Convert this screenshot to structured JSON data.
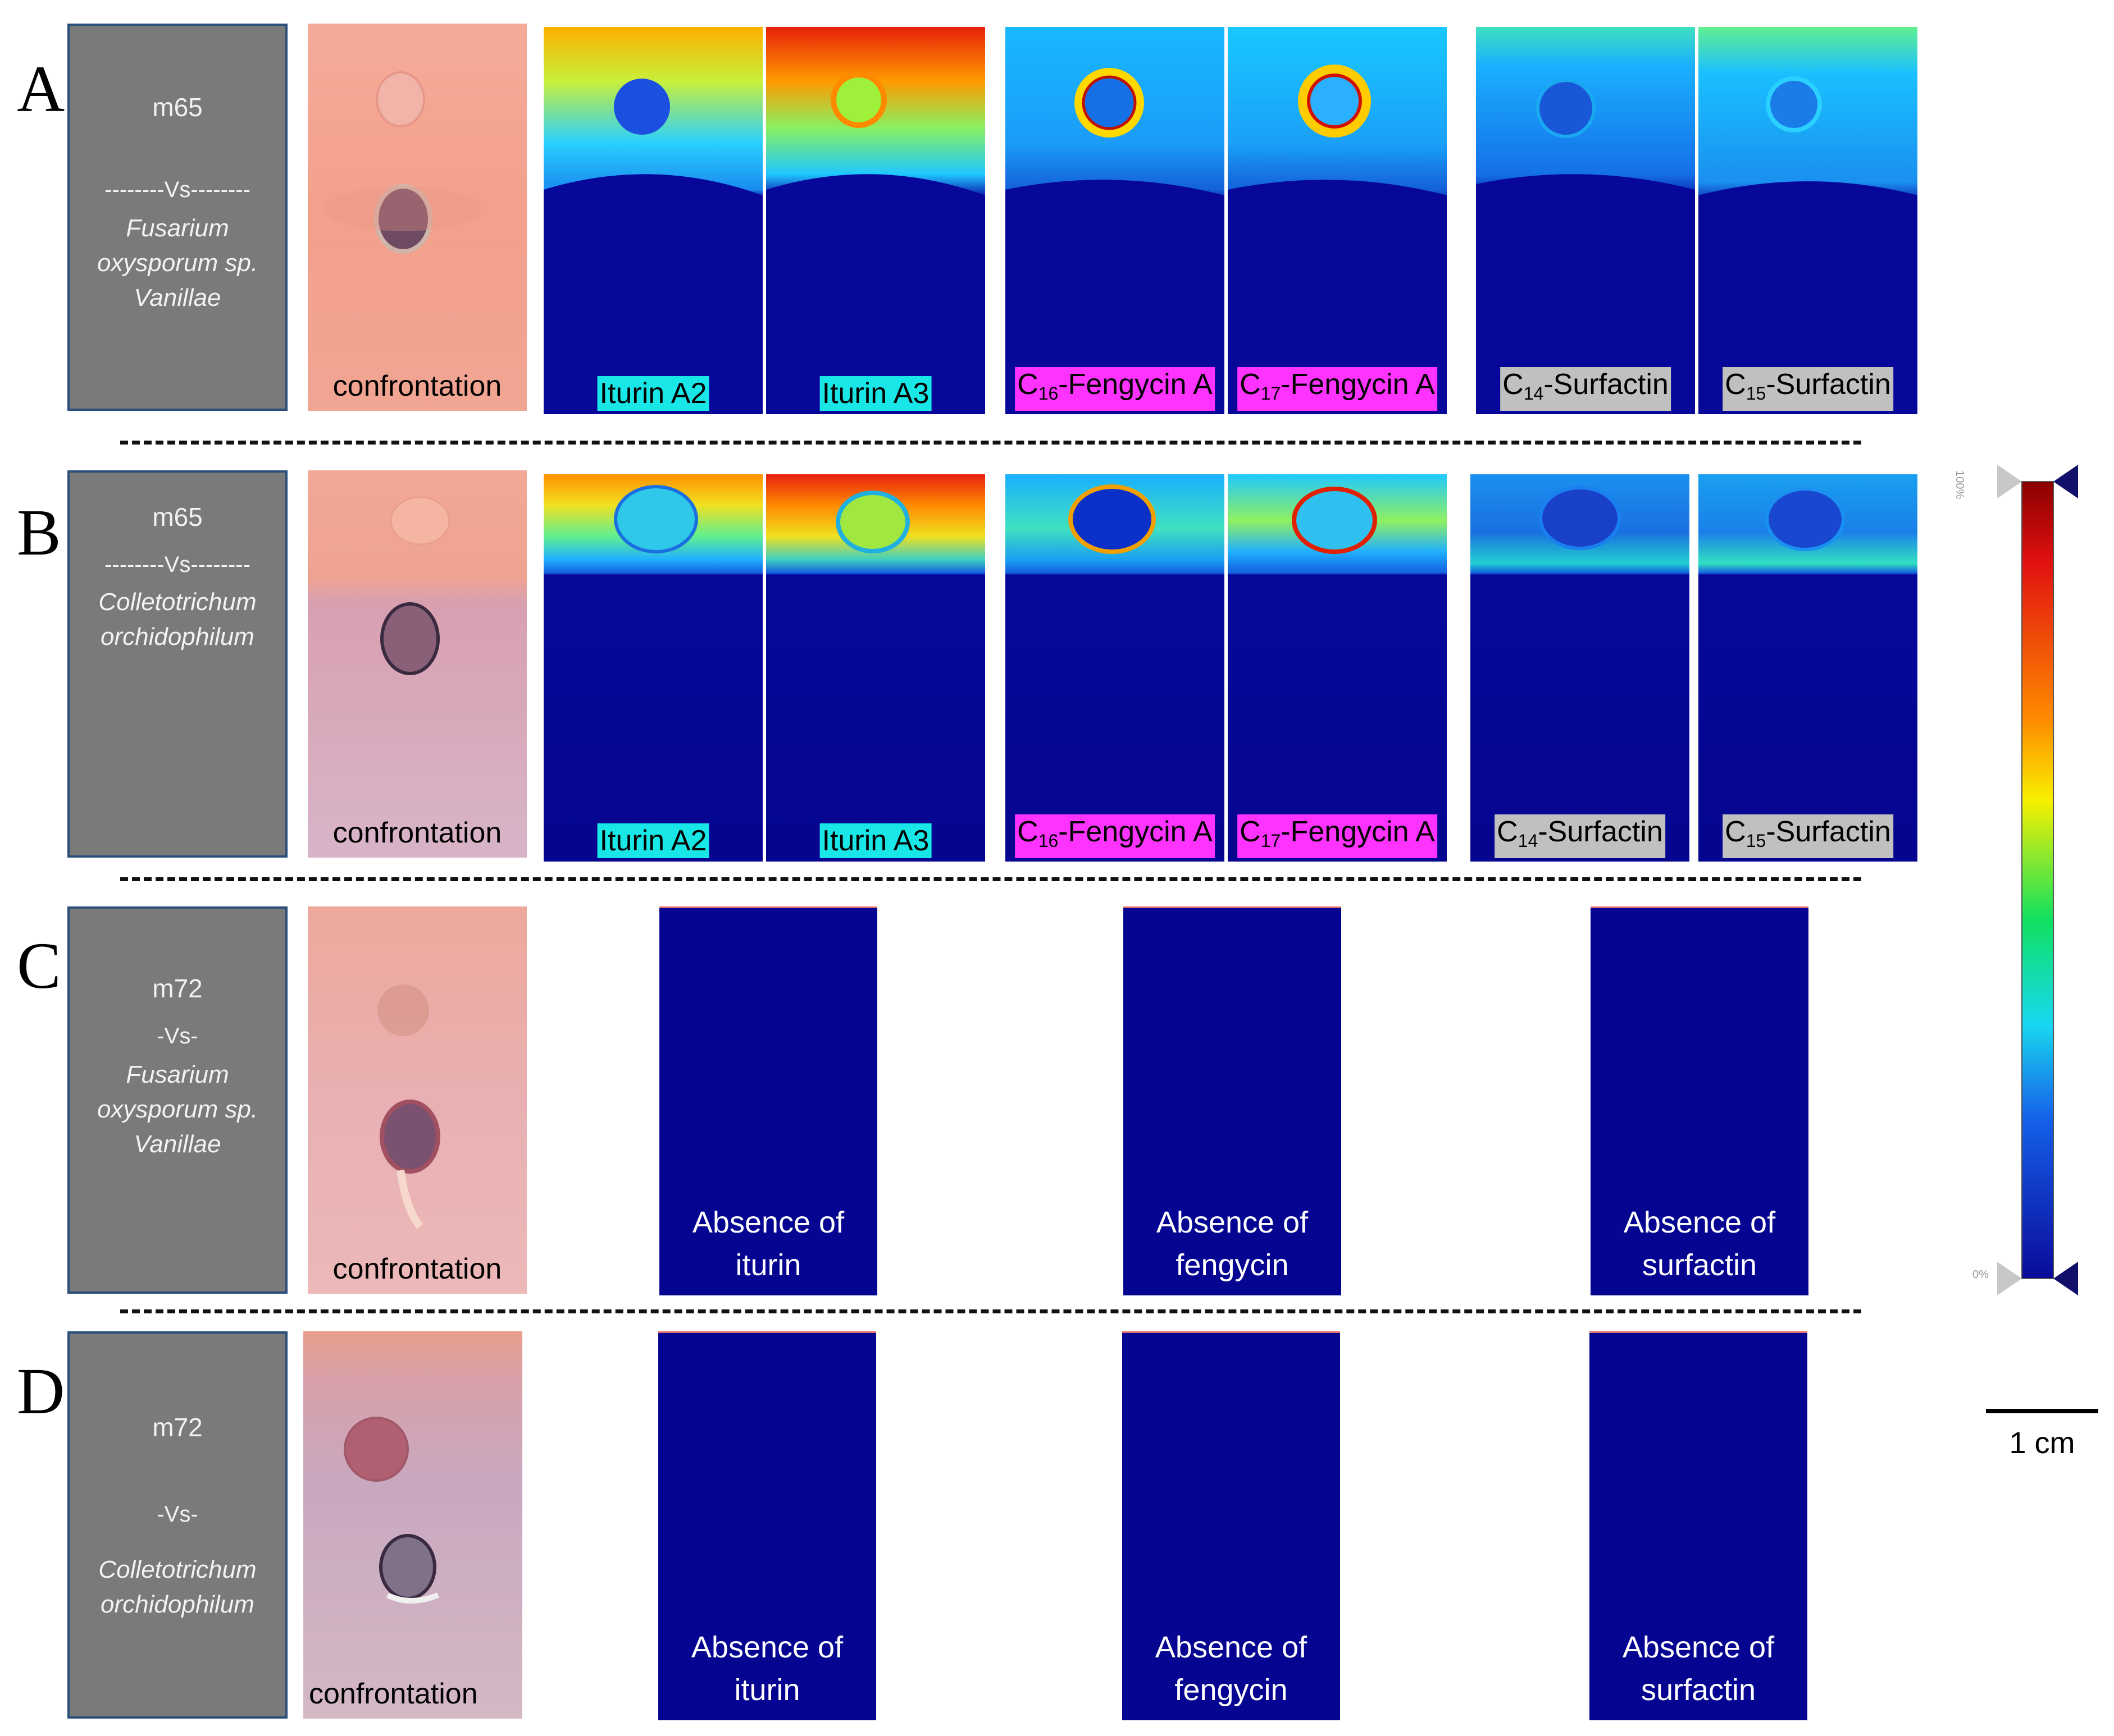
{
  "colors": {
    "info_box": "#7a7a7a",
    "info_border": "#2a4f7a",
    "ms_background": "#0a0aa0",
    "label_iturin": "#19e6e6",
    "label_fengycin": "#ff33ff",
    "label_surfactin": "#c0c0c0",
    "plate_pink": "#f2a391"
  },
  "rows": [
    {
      "letter": "A",
      "strain": "m65",
      "vs": "--------Vs--------",
      "fungus": [
        "Fusarium",
        "oxysporum sp.",
        "Vanillae"
      ],
      "plate_label": "confrontation",
      "ms_labels": [
        {
          "pre": "",
          "sub": "",
          "post": "Iturin A2"
        },
        {
          "pre": "",
          "sub": "",
          "post": "Iturin A3"
        },
        {
          "pre": "C",
          "sub": "16",
          "post": "-Fengycin A"
        },
        {
          "pre": "C",
          "sub": "17",
          "post": "-Fengycin A"
        },
        {
          "pre": "C",
          "sub": "14",
          "post": "-Surfactin"
        },
        {
          "pre": "C",
          "sub": "15",
          "post": "-Surfactin"
        }
      ]
    },
    {
      "letter": "B",
      "strain": "m65",
      "vs": "--------Vs--------",
      "fungus": [
        "Colletotrichum",
        "orchidophilum"
      ],
      "plate_label": "confrontation",
      "ms_labels": [
        {
          "pre": "",
          "sub": "",
          "post": "Iturin A2"
        },
        {
          "pre": "",
          "sub": "",
          "post": "Iturin A3"
        },
        {
          "pre": "C",
          "sub": "16",
          "post": "-Fengycin A"
        },
        {
          "pre": "C",
          "sub": "17",
          "post": "-Fengycin A"
        },
        {
          "pre": "C",
          "sub": "14",
          "post": "-Surfactin"
        },
        {
          "pre": "C",
          "sub": "15",
          "post": "-Surfactin"
        }
      ]
    },
    {
      "letter": "C",
      "strain": "m72",
      "vs": "-Vs-",
      "fungus": [
        "Fusarium",
        "oxysporum sp.",
        "Vanillae"
      ],
      "plate_label": "confrontation",
      "absent": [
        {
          "line1": "Absence of",
          "line2": "iturin"
        },
        {
          "line1": "Absence of",
          "line2": "fengycin"
        },
        {
          "line1": "Absence of",
          "line2": "surfactin"
        }
      ]
    },
    {
      "letter": "D",
      "strain": "m72",
      "vs": "-Vs-",
      "fungus": [
        "Colletotrichum",
        "orchidophilum"
      ],
      "plate_label": "confrontation",
      "absent": [
        {
          "line1": "Absence of",
          "line2": "iturin"
        },
        {
          "line1": "Absence of",
          "line2": "fengycin"
        },
        {
          "line1": "Absence of",
          "line2": "surfactin"
        }
      ]
    }
  ],
  "colorbar": {
    "top_label": "100%",
    "bottom_label": "0%"
  },
  "scale_bar": {
    "label": "1 cm"
  }
}
